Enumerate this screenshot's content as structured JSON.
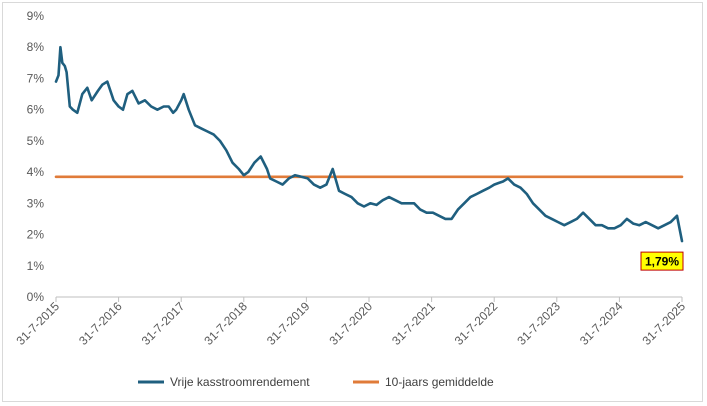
{
  "chart_data": {
    "type": "line",
    "title": "",
    "xlabel": "",
    "ylabel": "",
    "ylim": [
      0,
      9
    ],
    "y_unit": "%",
    "grid": false,
    "legend_placement": "bottom",
    "x_ticks": [
      "31-7-2015",
      "31-7-2016",
      "31-7-2017",
      "31-7-2018",
      "31-7-2019",
      "31-7-2020",
      "31-7-2021",
      "31-7-2022",
      "31-7-2023",
      "31-7-2024",
      "31-7-2025"
    ],
    "y_ticks": [
      "0%",
      "1%",
      "2%",
      "3%",
      "4%",
      "5%",
      "6%",
      "7%",
      "8%",
      "9%"
    ],
    "series": [
      {
        "name": "Vrije kasstroomrendement",
        "color": "#1f5f7f",
        "x": [
          2015.58,
          2015.62,
          2015.65,
          2015.68,
          2015.72,
          2015.75,
          2015.8,
          2015.85,
          2015.92,
          2016.0,
          2016.08,
          2016.15,
          2016.25,
          2016.32,
          2016.4,
          2016.5,
          2016.58,
          2016.65,
          2016.72,
          2016.8,
          2016.9,
          2017.0,
          2017.1,
          2017.2,
          2017.3,
          2017.38,
          2017.45,
          2017.5,
          2017.58,
          2017.62,
          2017.7,
          2017.8,
          2017.9,
          2018.0,
          2018.1,
          2018.2,
          2018.3,
          2018.4,
          2018.5,
          2018.58,
          2018.65,
          2018.75,
          2018.85,
          2018.95,
          2019.0,
          2019.1,
          2019.2,
          2019.3,
          2019.4,
          2019.5,
          2019.6,
          2019.7,
          2019.8,
          2019.9,
          2020.0,
          2020.1,
          2020.2,
          2020.3,
          2020.4,
          2020.5,
          2020.6,
          2020.7,
          2020.8,
          2020.9,
          2021.0,
          2021.1,
          2021.2,
          2021.3,
          2021.4,
          2021.5,
          2021.6,
          2021.7,
          2021.8,
          2021.9,
          2022.0,
          2022.1,
          2022.2,
          2022.3,
          2022.4,
          2022.5,
          2022.58,
          2022.65,
          2022.72,
          2022.8,
          2022.9,
          2023.0,
          2023.1,
          2023.2,
          2023.3,
          2023.4,
          2023.5,
          2023.6,
          2023.7,
          2023.8,
          2023.9,
          2024.0,
          2024.1,
          2024.2,
          2024.3,
          2024.4,
          2024.5,
          2024.6,
          2024.7,
          2024.8,
          2024.9,
          2025.0,
          2025.1,
          2025.2,
          2025.3,
          2025.4,
          2025.5,
          2025.58
        ],
        "values": [
          6.9,
          7.1,
          8.0,
          7.5,
          7.4,
          7.2,
          6.1,
          6.0,
          5.9,
          6.5,
          6.7,
          6.3,
          6.6,
          6.8,
          6.9,
          6.3,
          6.1,
          6.0,
          6.5,
          6.6,
          6.2,
          6.3,
          6.1,
          6.0,
          6.1,
          6.1,
          5.9,
          6.0,
          6.3,
          6.5,
          6.0,
          5.5,
          5.4,
          5.3,
          5.2,
          5.0,
          4.7,
          4.3,
          4.1,
          3.9,
          4.0,
          4.3,
          4.5,
          4.1,
          3.8,
          3.7,
          3.6,
          3.8,
          3.9,
          3.85,
          3.8,
          3.6,
          3.5,
          3.6,
          4.1,
          3.4,
          3.3,
          3.2,
          3.0,
          2.9,
          3.0,
          2.95,
          3.1,
          3.2,
          3.1,
          3.0,
          3.0,
          3.0,
          2.8,
          2.7,
          2.7,
          2.6,
          2.5,
          2.5,
          2.8,
          3.0,
          3.2,
          3.3,
          3.4,
          3.5,
          3.6,
          3.65,
          3.7,
          3.8,
          3.6,
          3.5,
          3.3,
          3.0,
          2.8,
          2.6,
          2.5,
          2.4,
          2.3,
          2.4,
          2.5,
          2.7,
          2.5,
          2.3,
          2.3,
          2.2,
          2.2,
          2.3,
          2.5,
          2.35,
          2.3,
          2.4,
          2.3,
          2.2,
          2.3,
          2.4,
          2.6,
          1.79
        ]
      },
      {
        "name": "10-jaars gemiddelde",
        "color": "#e07b39",
        "x": [
          2015.58,
          2025.58
        ],
        "values": [
          3.85,
          3.85
        ]
      }
    ],
    "annotations": [
      {
        "text": "1,79%",
        "x": 2025.58,
        "y": 1.79,
        "box_fill": "#ffff00",
        "border": "#c00000"
      }
    ]
  }
}
